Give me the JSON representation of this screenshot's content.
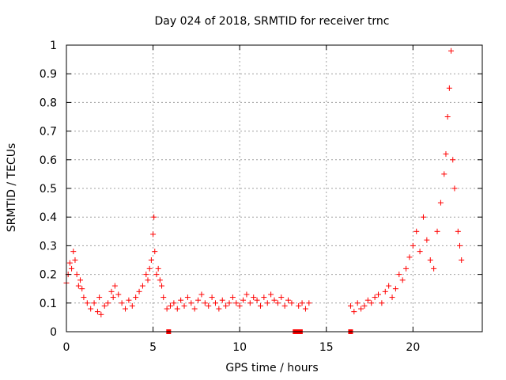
{
  "chart_data": {
    "type": "scatter",
    "title": "Day 024 of 2018, SRMTID for receiver trnc",
    "xlabel": "GPS time / hours",
    "ylabel": "SRMTID / TECUs",
    "xlim": [
      0,
      24
    ],
    "ylim": [
      0,
      1
    ],
    "xticks": [
      "0",
      "5",
      "10",
      "15",
      "20"
    ],
    "yticks": [
      "0",
      "0.1",
      "0.2",
      "0.3",
      "0.4",
      "0.5",
      "0.6",
      "0.7",
      "0.8",
      "0.9",
      "1"
    ],
    "grid": true,
    "marker": "+",
    "color": "#ff0000",
    "series": [
      {
        "name": "SRMTID",
        "x": [
          0.0,
          0.1,
          0.2,
          0.3,
          0.4,
          0.5,
          0.6,
          0.7,
          0.8,
          0.9,
          1.0,
          1.2,
          1.4,
          1.6,
          1.8,
          1.9,
          2.0,
          2.2,
          2.4,
          2.6,
          2.7,
          2.8,
          3.0,
          3.2,
          3.4,
          3.6,
          3.8,
          4.0,
          4.2,
          4.4,
          4.6,
          4.7,
          4.8,
          4.9,
          5.0,
          5.05,
          5.1,
          5.2,
          5.3,
          5.4,
          5.5,
          5.6,
          5.8,
          6.0,
          6.2,
          6.4,
          6.6,
          6.8,
          7.0,
          7.2,
          7.4,
          7.6,
          7.8,
          8.0,
          8.2,
          8.4,
          8.6,
          8.8,
          9.0,
          9.2,
          9.4,
          9.6,
          9.8,
          10.0,
          10.2,
          10.4,
          10.6,
          10.8,
          11.0,
          11.2,
          11.4,
          11.6,
          11.8,
          12.0,
          12.2,
          12.4,
          12.6,
          12.8,
          13.0,
          13.4,
          13.6,
          13.8,
          14.0,
          16.4,
          16.6,
          16.8,
          17.0,
          17.2,
          17.4,
          17.6,
          17.8,
          18.0,
          18.2,
          18.4,
          18.6,
          18.8,
          19.0,
          19.2,
          19.4,
          19.6,
          19.8,
          20.0,
          20.2,
          20.4,
          20.6,
          20.8,
          21.0,
          21.2,
          21.4,
          21.6,
          21.8,
          21.9,
          22.0,
          22.1,
          22.2,
          22.3,
          22.4,
          22.6,
          22.7,
          22.8
        ],
        "y": [
          0.17,
          0.2,
          0.24,
          0.22,
          0.28,
          0.25,
          0.2,
          0.16,
          0.18,
          0.15,
          0.12,
          0.1,
          0.08,
          0.1,
          0.07,
          0.12,
          0.06,
          0.09,
          0.1,
          0.14,
          0.12,
          0.16,
          0.13,
          0.1,
          0.08,
          0.11,
          0.09,
          0.12,
          0.14,
          0.16,
          0.2,
          0.18,
          0.22,
          0.25,
          0.34,
          0.4,
          0.28,
          0.2,
          0.22,
          0.18,
          0.16,
          0.12,
          0.08,
          0.09,
          0.1,
          0.08,
          0.11,
          0.09,
          0.12,
          0.1,
          0.08,
          0.11,
          0.13,
          0.1,
          0.09,
          0.12,
          0.1,
          0.08,
          0.11,
          0.09,
          0.1,
          0.12,
          0.1,
          0.09,
          0.11,
          0.13,
          0.1,
          0.12,
          0.11,
          0.09,
          0.12,
          0.1,
          0.13,
          0.11,
          0.1,
          0.12,
          0.09,
          0.11,
          0.1,
          0.09,
          0.1,
          0.08,
          0.1,
          0.09,
          0.07,
          0.1,
          0.08,
          0.09,
          0.11,
          0.1,
          0.12,
          0.13,
          0.1,
          0.14,
          0.16,
          0.12,
          0.15,
          0.2,
          0.18,
          0.22,
          0.26,
          0.3,
          0.35,
          0.28,
          0.4,
          0.32,
          0.25,
          0.22,
          0.35,
          0.45,
          0.55,
          0.62,
          0.75,
          0.85,
          0.98,
          0.6,
          0.5,
          0.35,
          0.3,
          0.25
        ]
      },
      {
        "name": "gap markers",
        "x": [
          5.9,
          13.2,
          13.3,
          13.4,
          13.5,
          16.4
        ],
        "y": [
          0,
          0,
          0,
          0,
          0,
          0
        ]
      }
    ]
  }
}
